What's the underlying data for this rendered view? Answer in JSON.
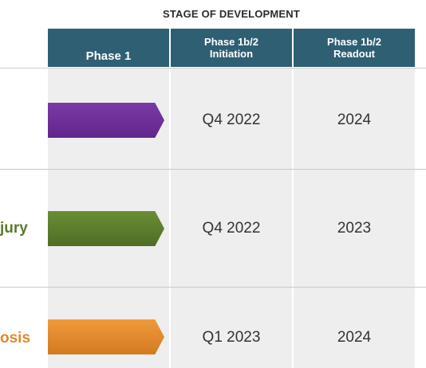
{
  "title": "STAGE OF DEVELOPMENT",
  "headers": [
    {
      "lines": [
        "Phase 1"
      ]
    },
    {
      "lines": [
        "Phase 1b/2",
        "Initiation"
      ]
    },
    {
      "lines": [
        "Phase 1b/2",
        "Readout"
      ]
    }
  ],
  "rows": [
    {
      "label": "",
      "label_color": "#6a2c91",
      "bar_color": "#6a2c91",
      "initiation": "Q4 2022",
      "readout": "2024"
    },
    {
      "label": "jury",
      "label_color": "#5a7a2e",
      "bar_color": "#5a7a2e",
      "initiation": "Q4 2022",
      "readout": "2023"
    },
    {
      "label": "osis",
      "label_color": "#e08a2c",
      "bar_color": "#e08a2c",
      "initiation": "Q1 2023",
      "readout": "2024"
    }
  ],
  "colors": {
    "header_bg": "#2e5f73",
    "cell_bg": "#eeeeee"
  }
}
